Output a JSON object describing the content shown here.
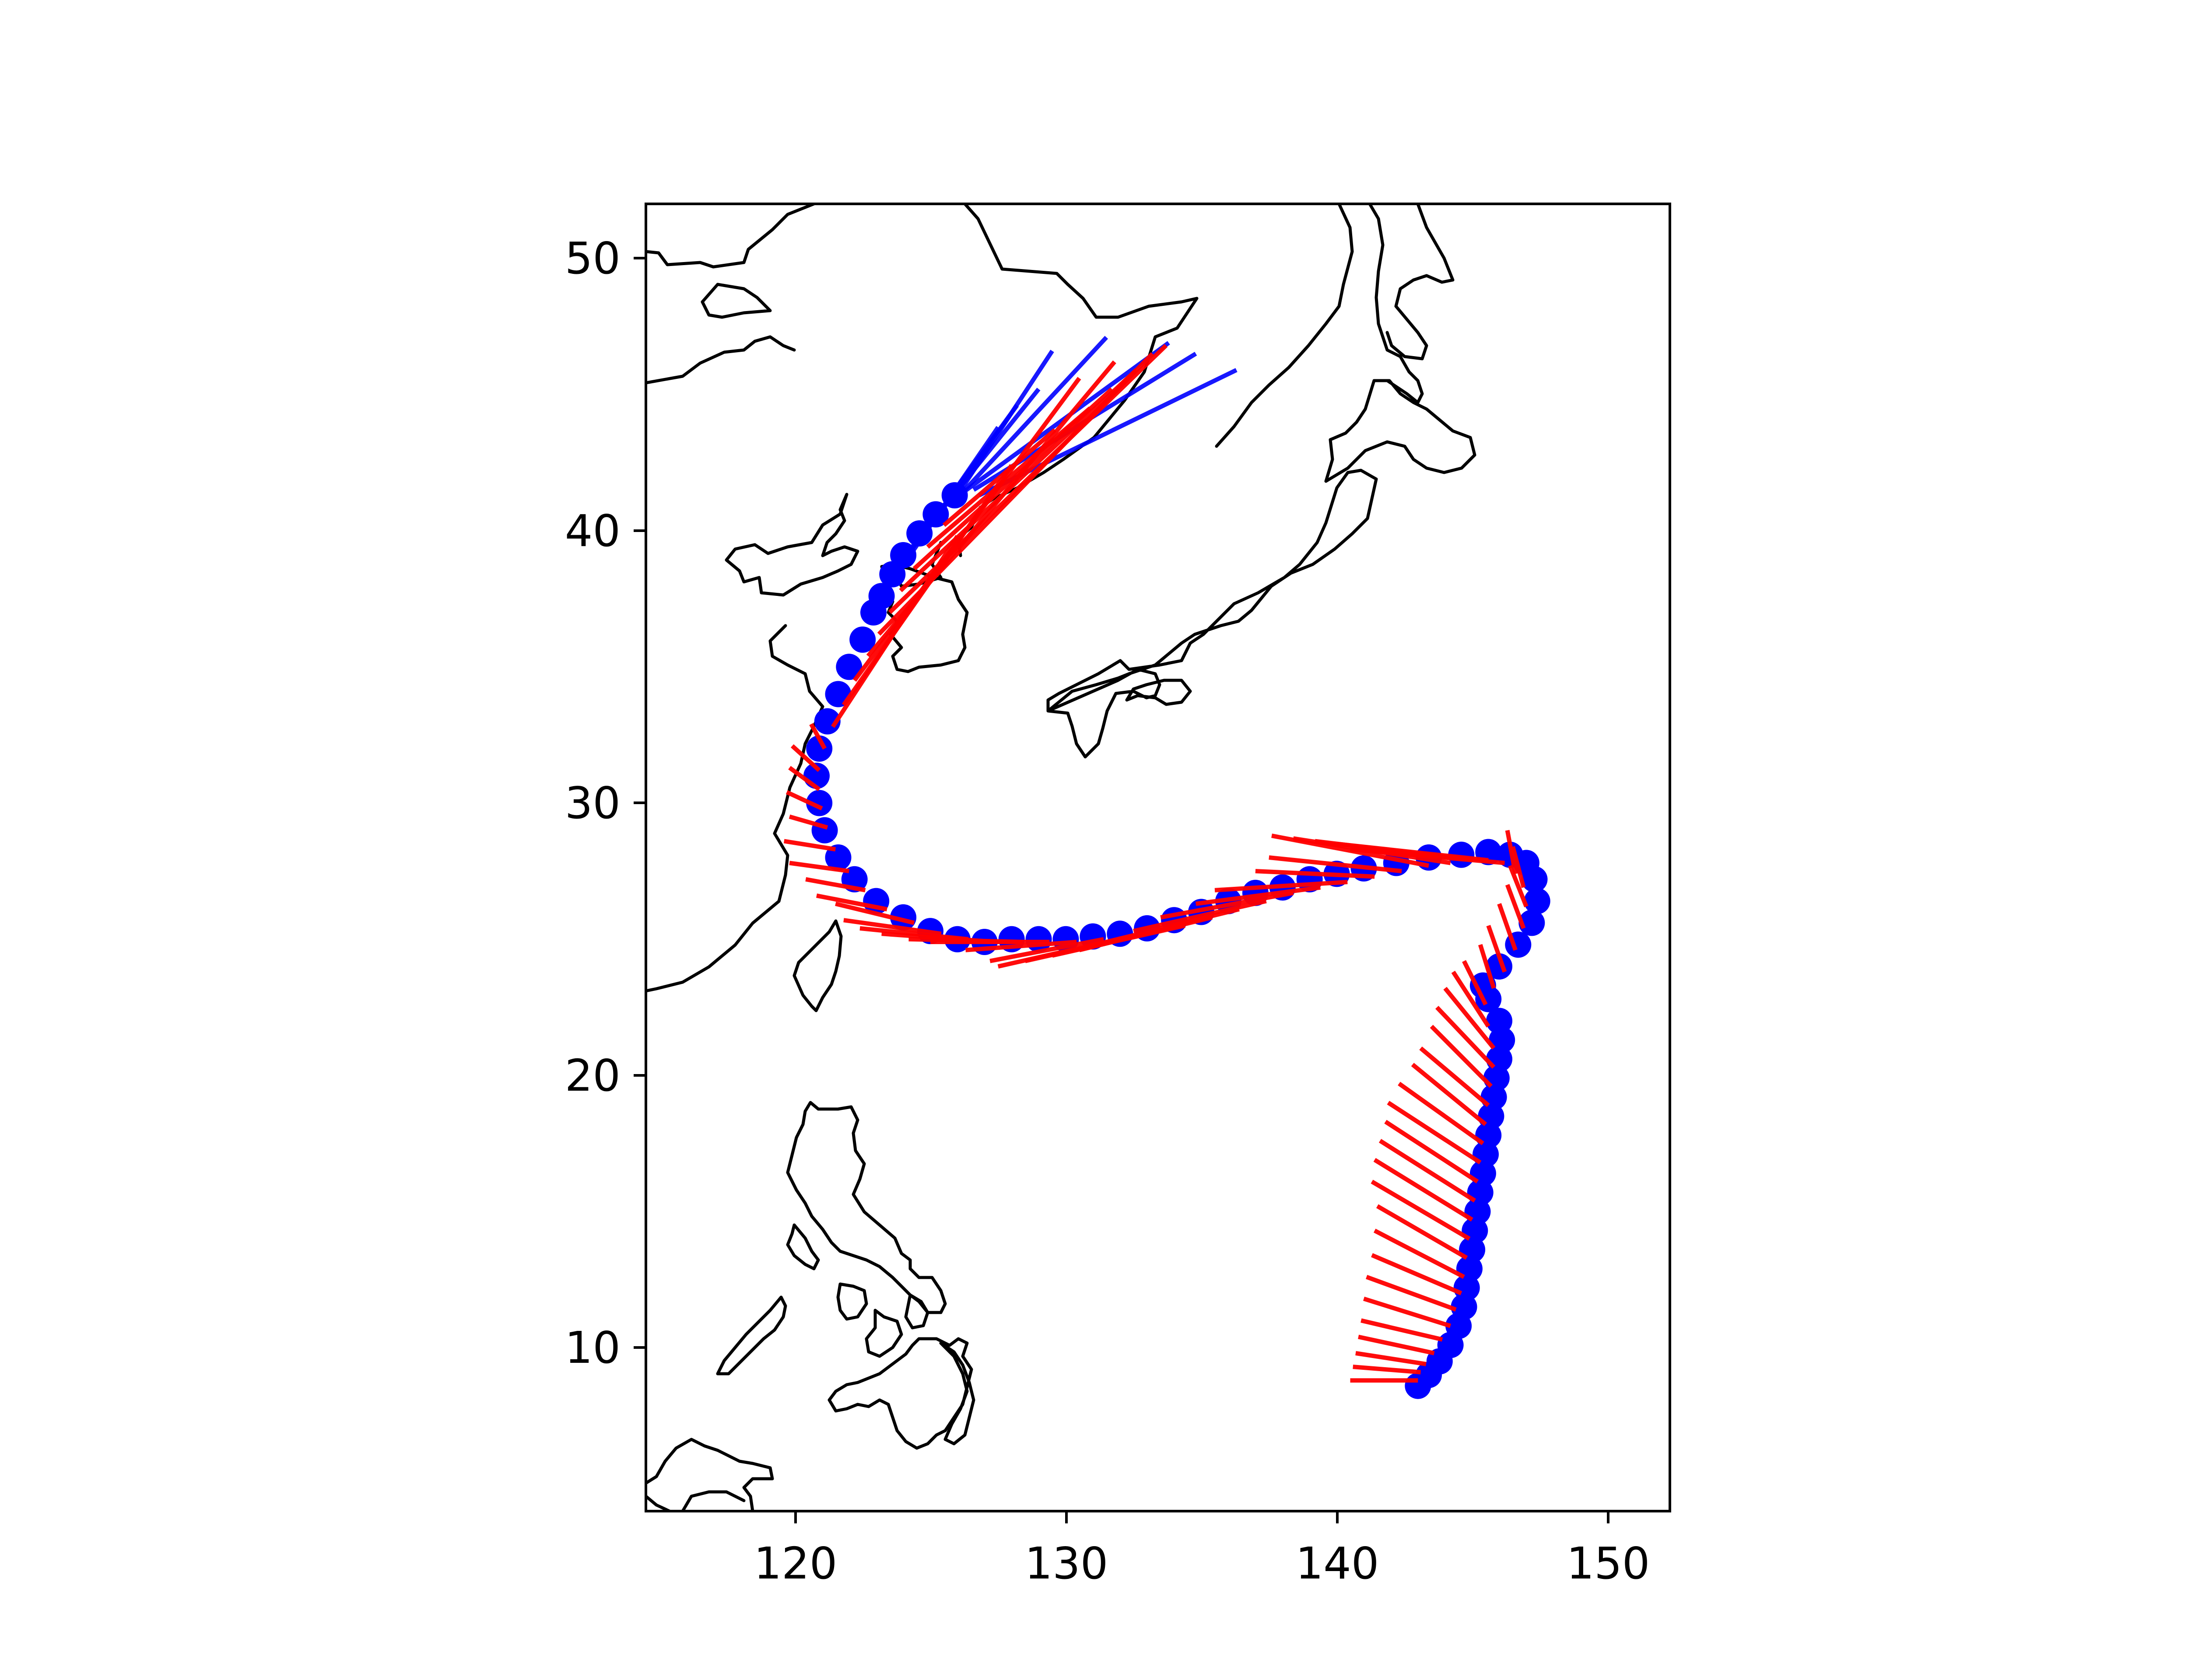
{
  "colors": {
    "observed": "#0000ff",
    "forecast": "#ff0000",
    "coastline": "#000000",
    "background": "#ffffff"
  },
  "map": {
    "lon_range": [
      114.5,
      152.3
    ],
    "lat_range": [
      4.0,
      52.0
    ]
  },
  "chart_data": {
    "type": "map-track",
    "title": "",
    "xlabel": "",
    "ylabel": "",
    "xlim": [
      114.5,
      152.3
    ],
    "ylim": [
      4.0,
      52.0
    ],
    "xticks": [
      120,
      130,
      140,
      150
    ],
    "yticks": [
      10,
      20,
      30,
      40,
      50
    ],
    "xtick_labels": [
      "120",
      "130",
      "140",
      "150"
    ],
    "ytick_labels": [
      "10",
      "20",
      "30",
      "40",
      "50"
    ],
    "grid": false,
    "legend": "none",
    "series": [
      {
        "kind": "track-points",
        "color": "#0000ff",
        "points": [
          [
            143.0,
            8.6
          ],
          [
            143.4,
            9.0
          ],
          [
            143.8,
            9.5
          ],
          [
            144.2,
            10.1
          ],
          [
            144.5,
            10.8
          ],
          [
            144.7,
            11.5
          ],
          [
            144.8,
            12.2
          ],
          [
            144.9,
            12.9
          ],
          [
            145.0,
            13.6
          ],
          [
            145.1,
            14.3
          ],
          [
            145.2,
            15.0
          ],
          [
            145.3,
            15.7
          ],
          [
            145.4,
            16.4
          ],
          [
            145.5,
            17.1
          ],
          [
            145.6,
            17.8
          ],
          [
            145.7,
            18.5
          ],
          [
            145.8,
            19.2
          ],
          [
            145.9,
            19.9
          ],
          [
            146.0,
            20.6
          ],
          [
            146.1,
            21.3
          ],
          [
            146.0,
            22.0
          ],
          [
            145.6,
            22.8
          ],
          [
            145.4,
            23.3
          ],
          [
            146.0,
            24.0
          ],
          [
            146.7,
            24.8
          ],
          [
            147.2,
            25.6
          ],
          [
            147.4,
            26.4
          ],
          [
            147.3,
            27.2
          ],
          [
            147.0,
            27.8
          ],
          [
            146.4,
            28.1
          ],
          [
            145.6,
            28.2
          ],
          [
            144.6,
            28.1
          ],
          [
            143.4,
            28.0
          ],
          [
            142.2,
            27.8
          ],
          [
            141.0,
            27.6
          ],
          [
            140.0,
            27.4
          ],
          [
            139.0,
            27.2
          ],
          [
            138.0,
            26.9
          ],
          [
            137.0,
            26.7
          ],
          [
            136.0,
            26.4
          ],
          [
            135.0,
            26.0
          ],
          [
            134.0,
            25.7
          ],
          [
            133.0,
            25.4
          ],
          [
            132.0,
            25.2
          ],
          [
            131.0,
            25.1
          ],
          [
            130.0,
            25.0
          ],
          [
            129.0,
            25.0
          ],
          [
            128.0,
            25.0
          ],
          [
            127.0,
            24.9
          ],
          [
            126.0,
            25.0
          ],
          [
            125.0,
            25.3
          ],
          [
            124.0,
            25.8
          ],
          [
            123.0,
            26.4
          ],
          [
            122.2,
            27.2
          ],
          [
            121.6,
            28.0
          ],
          [
            121.1,
            29.0
          ],
          [
            120.9,
            30.0
          ],
          [
            120.8,
            31.0
          ],
          [
            120.9,
            32.0
          ],
          [
            121.2,
            33.0
          ],
          [
            121.6,
            34.0
          ],
          [
            122.0,
            35.0
          ],
          [
            122.5,
            36.0
          ],
          [
            122.9,
            37.0
          ],
          [
            123.2,
            37.6
          ],
          [
            123.6,
            38.4
          ],
          [
            124.0,
            39.1
          ],
          [
            124.6,
            39.9
          ],
          [
            125.2,
            40.6
          ],
          [
            125.9,
            41.3
          ]
        ]
      },
      {
        "kind": "track-vectors",
        "color": "#0000ff",
        "segments": [
          [
            125.8,
            41.0,
            129.5,
            46.6
          ],
          [
            126.0,
            41.2,
            131.5,
            47.1
          ],
          [
            126.2,
            41.4,
            133.8,
            46.9
          ],
          [
            126.6,
            41.5,
            134.8,
            46.5
          ],
          [
            126.8,
            41.3,
            136.3,
            45.9
          ],
          [
            124.0,
            39.0,
            129.0,
            45.2
          ],
          [
            123.5,
            38.2,
            128.2,
            44.6
          ],
          [
            122.8,
            37.0,
            127.5,
            43.8
          ]
        ]
      },
      {
        "kind": "track-vectors",
        "color": "#ff0000",
        "segments": [
          [
            143.0,
            8.8,
            140.5,
            8.8
          ],
          [
            143.1,
            9.1,
            140.6,
            9.3
          ],
          [
            143.3,
            9.4,
            140.7,
            9.8
          ],
          [
            143.6,
            9.8,
            140.8,
            10.4
          ],
          [
            143.9,
            10.3,
            140.9,
            11.0
          ],
          [
            144.2,
            10.8,
            141.0,
            11.8
          ],
          [
            144.4,
            11.4,
            141.1,
            12.6
          ],
          [
            144.6,
            12.0,
            141.3,
            13.4
          ],
          [
            144.7,
            12.6,
            141.4,
            14.3
          ],
          [
            144.8,
            13.3,
            141.5,
            15.2
          ],
          [
            144.9,
            14.0,
            141.3,
            16.1
          ],
          [
            145.0,
            14.7,
            141.4,
            16.9
          ],
          [
            145.1,
            15.4,
            141.6,
            17.6
          ],
          [
            145.2,
            16.1,
            141.8,
            18.3
          ],
          [
            145.3,
            16.8,
            141.9,
            19.0
          ],
          [
            145.4,
            17.5,
            142.3,
            19.7
          ],
          [
            145.5,
            18.2,
            142.8,
            20.4
          ],
          [
            145.6,
            18.9,
            143.1,
            21.0
          ],
          [
            145.7,
            19.6,
            143.5,
            21.8
          ],
          [
            145.8,
            20.3,
            143.7,
            22.5
          ],
          [
            145.8,
            21.0,
            144.0,
            23.2
          ],
          [
            145.6,
            21.8,
            144.3,
            23.8
          ],
          [
            145.5,
            22.6,
            144.7,
            24.2
          ],
          [
            145.8,
            23.2,
            145.3,
            24.8
          ],
          [
            146.2,
            23.8,
            145.6,
            25.5
          ],
          [
            146.6,
            24.6,
            146.0,
            26.3
          ],
          [
            146.9,
            25.4,
            146.3,
            27.0
          ],
          [
            147.0,
            26.2,
            146.4,
            27.7
          ],
          [
            146.9,
            26.9,
            146.5,
            28.4
          ],
          [
            146.6,
            27.4,
            146.3,
            29.0
          ],
          [
            146.2,
            27.8,
            140.5,
            28.3
          ],
          [
            145.6,
            27.9,
            140.0,
            28.5
          ],
          [
            145.0,
            27.9,
            139.2,
            28.6
          ],
          [
            144.2,
            27.8,
            138.4,
            28.7
          ],
          [
            143.4,
            27.7,
            137.6,
            28.8
          ],
          [
            142.4,
            27.5,
            137.5,
            28.0
          ],
          [
            141.4,
            27.3,
            137.0,
            27.5
          ],
          [
            140.4,
            27.1,
            135.5,
            26.8
          ],
          [
            139.4,
            26.9,
            134.8,
            26.3
          ],
          [
            138.4,
            26.7,
            133.5,
            25.8
          ],
          [
            137.4,
            26.4,
            132.5,
            25.3
          ],
          [
            136.4,
            26.1,
            131.5,
            24.9
          ],
          [
            135.4,
            25.8,
            130.5,
            24.6
          ],
          [
            134.4,
            25.5,
            129.5,
            24.4
          ],
          [
            133.4,
            25.3,
            128.5,
            24.2
          ],
          [
            132.4,
            25.1,
            127.5,
            24.0
          ],
          [
            131.4,
            25.0,
            127.2,
            24.2
          ],
          [
            130.4,
            24.9,
            126.3,
            24.6
          ],
          [
            129.4,
            24.9,
            125.0,
            24.9
          ],
          [
            128.4,
            24.9,
            124.2,
            25.0
          ],
          [
            127.4,
            24.9,
            123.2,
            25.2
          ],
          [
            126.4,
            25.0,
            122.4,
            25.4
          ],
          [
            125.4,
            25.2,
            121.8,
            25.7
          ],
          [
            124.4,
            25.6,
            121.5,
            26.3
          ],
          [
            123.4,
            26.1,
            120.8,
            26.6
          ],
          [
            122.6,
            26.8,
            120.4,
            27.2
          ],
          [
            122.0,
            27.5,
            119.8,
            27.8
          ],
          [
            121.5,
            28.3,
            119.6,
            28.6
          ],
          [
            121.2,
            29.1,
            119.8,
            29.5
          ],
          [
            121.0,
            29.8,
            119.7,
            30.4
          ],
          [
            120.9,
            30.5,
            119.8,
            31.3
          ],
          [
            120.9,
            31.2,
            119.9,
            32.1
          ],
          [
            121.1,
            32.0,
            120.6,
            32.9
          ],
          [
            121.4,
            32.8,
            126.0,
            39.8
          ],
          [
            121.8,
            33.6,
            128.0,
            42.4
          ],
          [
            122.2,
            34.5,
            130.5,
            45.6
          ],
          [
            122.7,
            35.4,
            131.8,
            46.2
          ],
          [
            123.1,
            36.2,
            133.2,
            46.5
          ],
          [
            123.5,
            37.0,
            133.7,
            46.8
          ],
          [
            123.9,
            37.8,
            132.6,
            45.9
          ],
          [
            124.4,
            38.6,
            131.7,
            45.2
          ],
          [
            124.9,
            39.4,
            130.9,
            44.5
          ],
          [
            125.5,
            40.2,
            129.6,
            43.7
          ]
        ]
      }
    ]
  }
}
